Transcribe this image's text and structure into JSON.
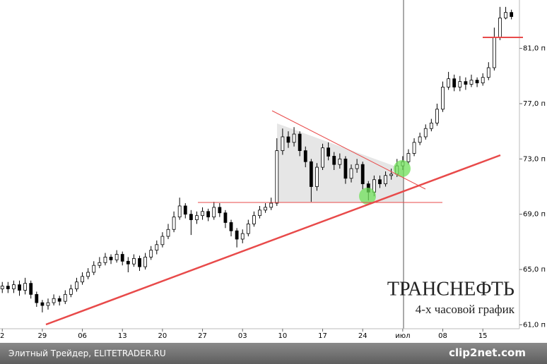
{
  "chart_data": {
    "type": "candlestick",
    "title": "ТРАНСНЕФТЬ",
    "subtitle": "4-х часовой график",
    "x": [
      0,
      1,
      2,
      3,
      4,
      5,
      6,
      7,
      8,
      9,
      10,
      11,
      12,
      13,
      14,
      15,
      16,
      17,
      18,
      19,
      20,
      21,
      22,
      23,
      24,
      25,
      26,
      27,
      28,
      29,
      30,
      31,
      32,
      33,
      34,
      35,
      36,
      37,
      38,
      39,
      40,
      41,
      42,
      43,
      44,
      45,
      46,
      47,
      48,
      49,
      50,
      51,
      52,
      53,
      54,
      55,
      56,
      57,
      58,
      59,
      60,
      61,
      62,
      63,
      64,
      65,
      66,
      67,
      68,
      69,
      70,
      71,
      72,
      73,
      74,
      75,
      76,
      77,
      78,
      79,
      80,
      81,
      82,
      83,
      84,
      85,
      86,
      87,
      88,
      89
    ],
    "open": [
      63.6,
      63.8,
      63.6,
      63.9,
      63.5,
      64.0,
      63.2,
      62.6,
      62.4,
      62.6,
      62.9,
      62.7,
      63.2,
      63.6,
      64.1,
      64.5,
      64.8,
      65.3,
      65.5,
      65.9,
      65.7,
      66.1,
      65.6,
      65.4,
      65.8,
      65.2,
      65.9,
      66.4,
      66.8,
      67.4,
      67.9,
      68.8,
      69.6,
      69.0,
      68.6,
      68.9,
      69.2,
      68.8,
      69.5,
      69.1,
      68.4,
      67.8,
      67.2,
      67.6,
      68.3,
      68.9,
      69.3,
      69.5,
      69.8,
      73.6,
      74.6,
      74.2,
      74.8,
      73.6,
      72.8,
      71.0,
      72.4,
      73.8,
      73.2,
      72.6,
      73.0,
      71.6,
      72.3,
      72.6,
      71.2,
      70.6,
      71.5,
      71.2,
      71.8,
      71.9,
      72.5,
      72.8,
      73.4,
      74.2,
      74.6,
      75.2,
      75.6,
      76.6,
      78.2,
      78.8,
      78.2,
      78.6,
      78.4,
      78.7,
      78.5,
      78.9,
      79.6,
      81.8,
      83.2,
      83.6
    ],
    "high": [
      64.1,
      64.1,
      64.2,
      64.2,
      64.4,
      64.2,
      63.4,
      62.8,
      62.9,
      63.2,
      63.1,
      63.5,
      63.9,
      64.4,
      64.8,
      65.1,
      65.6,
      65.9,
      66.2,
      66.1,
      66.4,
      66.3,
      65.9,
      66.1,
      66.0,
      66.2,
      66.7,
      67.1,
      67.7,
      68.3,
      69.2,
      70.2,
      69.8,
      69.3,
      69.2,
      69.5,
      69.4,
      69.9,
      69.8,
      69.3,
      68.6,
      68.0,
      67.9,
      68.6,
      69.2,
      69.6,
      69.8,
      70.2,
      74.5,
      75.2,
      75.0,
      75.3,
      75.0,
      73.9,
      73.0,
      72.7,
      74.1,
      74.2,
      73.5,
      73.4,
      73.2,
      72.6,
      73.0,
      72.8,
      71.4,
      71.8,
      71.8,
      72.1,
      72.3,
      73.0,
      73.2,
      73.7,
      74.5,
      74.9,
      75.5,
      75.9,
      77.0,
      78.6,
      79.3,
      79.1,
      79.0,
      78.9,
      79.1,
      78.9,
      79.2,
      80.0,
      82.5,
      84.0,
      84.0,
      83.8
    ],
    "low": [
      63.3,
      63.3,
      63.3,
      63.1,
      63.2,
      62.9,
      62.3,
      61.9,
      62.1,
      62.4,
      62.4,
      62.5,
      63.0,
      63.4,
      63.9,
      64.3,
      64.6,
      65.1,
      65.3,
      65.4,
      65.5,
      65.3,
      64.8,
      65.2,
      64.9,
      65.0,
      65.7,
      66.1,
      66.6,
      67.2,
      67.7,
      68.6,
      68.7,
      67.5,
      68.3,
      68.6,
      68.5,
      68.6,
      68.8,
      68.0,
      67.4,
      66.6,
      66.9,
      67.4,
      68.1,
      68.7,
      69.1,
      69.3,
      69.6,
      73.3,
      73.8,
      73.9,
      73.2,
      72.4,
      69.9,
      70.7,
      72.2,
      72.9,
      72.2,
      72.3,
      71.2,
      71.3,
      72.0,
      70.8,
      70.0,
      70.3,
      70.9,
      71.0,
      71.5,
      71.7,
      72.2,
      72.6,
      73.2,
      74.0,
      74.4,
      75.0,
      75.4,
      76.4,
      78.0,
      77.9,
      77.9,
      78.0,
      78.2,
      78.2,
      78.3,
      78.7,
      79.4,
      81.6,
      83.1,
      83.1
    ],
    "close": [
      63.8,
      63.6,
      63.9,
      63.5,
      64.0,
      63.2,
      62.6,
      62.4,
      62.6,
      62.9,
      62.7,
      63.2,
      63.6,
      64.1,
      64.5,
      64.8,
      65.3,
      65.5,
      65.9,
      65.7,
      66.1,
      65.6,
      65.4,
      65.8,
      65.2,
      65.9,
      66.4,
      66.8,
      67.4,
      67.9,
      68.8,
      69.6,
      69.0,
      68.6,
      68.9,
      69.2,
      68.8,
      69.5,
      69.1,
      68.4,
      67.8,
      67.2,
      67.6,
      68.3,
      68.9,
      69.3,
      69.5,
      69.8,
      73.6,
      74.6,
      74.2,
      74.8,
      73.6,
      72.8,
      71.0,
      72.4,
      73.8,
      73.2,
      72.6,
      73.0,
      71.6,
      72.3,
      72.6,
      71.2,
      70.6,
      71.5,
      71.2,
      71.8,
      71.9,
      72.5,
      72.8,
      73.4,
      74.2,
      74.6,
      75.2,
      75.6,
      76.6,
      78.2,
      78.8,
      78.2,
      78.6,
      78.4,
      78.7,
      78.5,
      78.9,
      79.6,
      81.8,
      83.2,
      83.6,
      83.3
    ],
    "up_color": "#ffffff",
    "down_color": "#000000",
    "outline_color": "#000000",
    "xlim": [
      -0.4,
      90.4
    ],
    "xticks": [
      {
        "value": 0,
        "label": "2"
      },
      {
        "value": 7,
        "label": "29"
      },
      {
        "value": 14,
        "label": "06"
      },
      {
        "value": 21,
        "label": "13"
      },
      {
        "value": 28,
        "label": "20"
      },
      {
        "value": 35,
        "label": "27"
      },
      {
        "value": 42,
        "label": "03"
      },
      {
        "value": 49,
        "label": "10"
      },
      {
        "value": 56,
        "label": "17"
      },
      {
        "value": 63,
        "label": "24"
      },
      {
        "value": 70,
        "label": "июл"
      },
      {
        "value": 77,
        "label": "08"
      },
      {
        "value": 84,
        "label": "15"
      }
    ],
    "ylim": [
      59.9,
      84.5
    ],
    "yticks": [
      {
        "value": 61,
        "label": "61,0 п"
      },
      {
        "value": 65,
        "label": "65,0 п"
      },
      {
        "value": 69,
        "label": "69,0 п"
      },
      {
        "value": 73,
        "label": "73,0 п"
      },
      {
        "value": 77,
        "label": "77,0 п"
      },
      {
        "value": 81,
        "label": "81,0 п"
      }
    ]
  },
  "footer": {
    "source": "Элитный Трейдер, ELITETRADER.RU",
    "logo": "clip2net.com"
  }
}
